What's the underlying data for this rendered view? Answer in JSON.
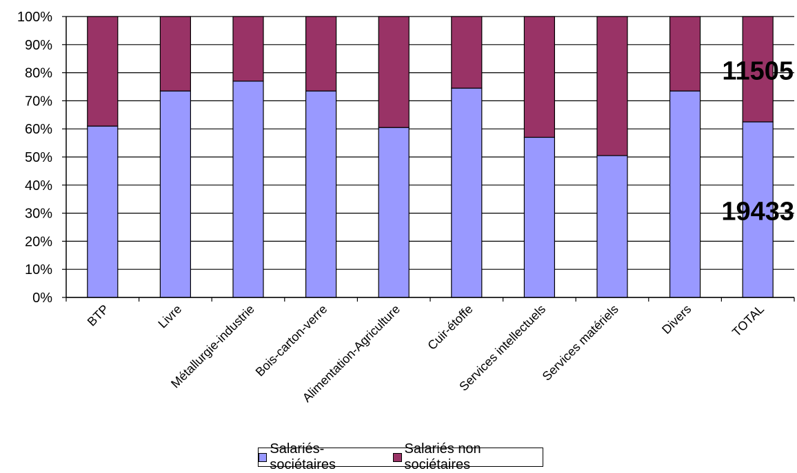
{
  "chart_data": {
    "type": "bar",
    "stacked": true,
    "percent": true,
    "categories": [
      "BTP",
      "Livre",
      "Métallurgie-industrie",
      "Bois-carton-verre",
      "Alimentation-Agriculture",
      "Cuir-étoffe",
      "Services intellectuels",
      "Services matériels",
      "Divers",
      "TOTAL"
    ],
    "series": [
      {
        "name": "Salariés-sociétaires",
        "color": "#9999ff",
        "values": [
          61,
          73.5,
          77,
          73.5,
          60.5,
          74.5,
          57,
          50.5,
          73.5,
          62.5
        ]
      },
      {
        "name": "Salariés non sociétaires",
        "color": "#993366",
        "values": [
          39,
          26.5,
          23,
          26.5,
          39.5,
          25.5,
          43,
          49.5,
          26.5,
          37.5
        ]
      }
    ],
    "yticks": [
      "0%",
      "10%",
      "20%",
      "30%",
      "40%",
      "50%",
      "60%",
      "70%",
      "80%",
      "90%",
      "100%"
    ],
    "ylim": [
      0,
      100
    ],
    "grid": true,
    "legend_position": "bottom",
    "annotations": [
      {
        "text": "11505",
        "category": "TOTAL",
        "y": 81
      },
      {
        "text": "19433",
        "category": "TOTAL",
        "y": 31
      }
    ]
  }
}
